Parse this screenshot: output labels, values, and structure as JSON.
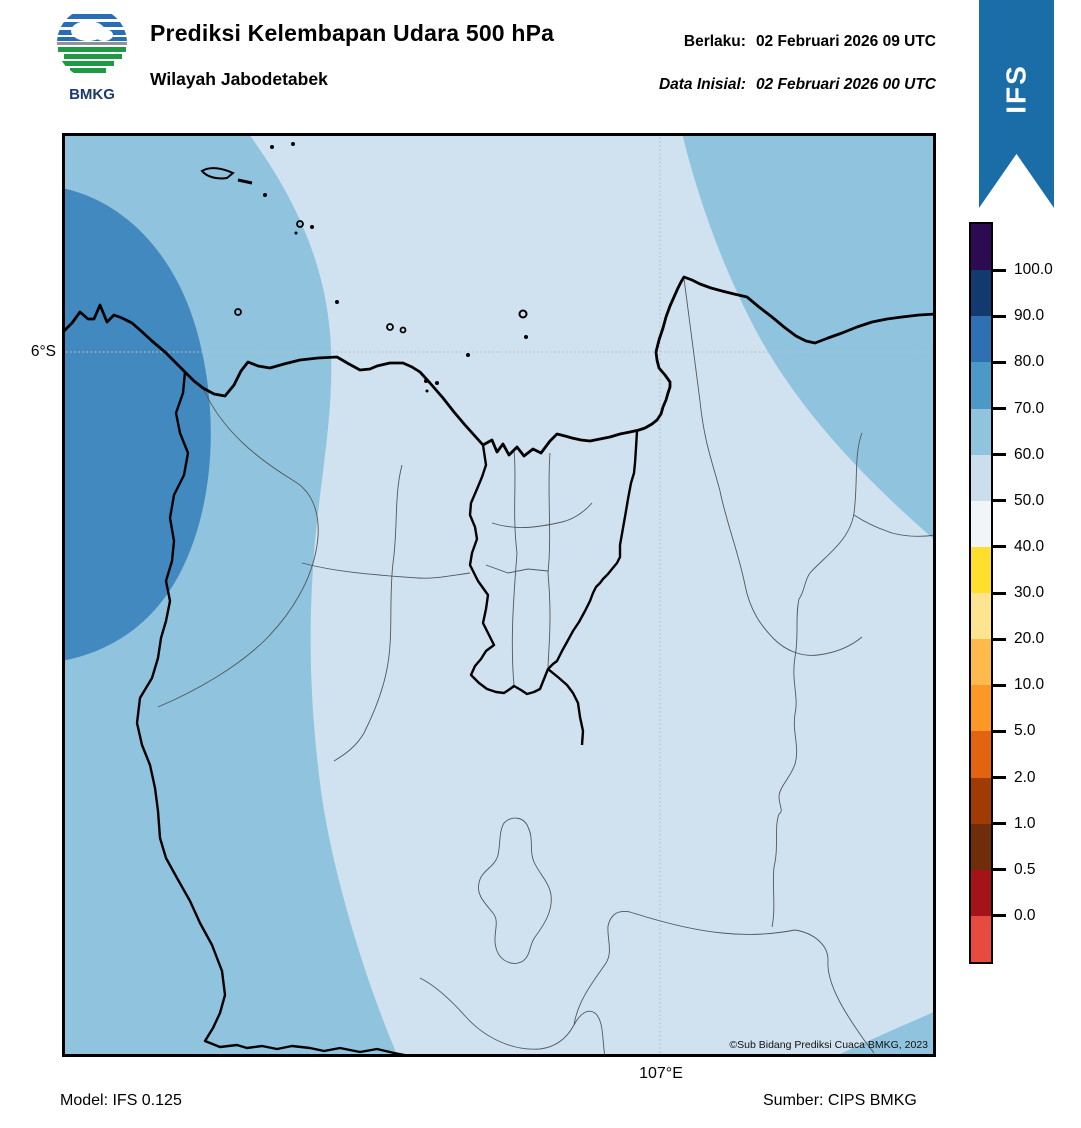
{
  "header": {
    "logo_text": "BMKG",
    "title": "Prediksi Kelembapan Udara 500 hPa",
    "subtitle": "Wilayah Jabodetabek",
    "valid_label": "Berlaku:",
    "valid_value": "02 Februari 2026 09 UTC",
    "init_label": "Data Inisial:",
    "init_value": "02 Februari 2026 00 UTC"
  },
  "ribbon": {
    "label": "IFS",
    "color": "#1a6da6"
  },
  "map": {
    "lat_tick": "6°S",
    "lon_tick": "107°E",
    "copyright": "©Sub Bidang Prediksi Cuaca BMKG, 2023",
    "fills": {
      "rh_50_60": "#d0e2ef",
      "rh_60_70": "#90c3de",
      "rh_70_80": "#4289bf"
    }
  },
  "colorbar": {
    "tick_labels": [
      "100.0",
      "90.0",
      "80.0",
      "70.0",
      "60.0",
      "50.0",
      "40.0",
      "30.0",
      "20.0",
      "10.0",
      "5.0",
      "2.0",
      "1.0",
      "0.5",
      "0.0"
    ],
    "segment_colors": [
      "#2d0b52",
      "#123a6e",
      "#2e70b2",
      "#4d99c6",
      "#90c3de",
      "#cbdeed",
      "#f2f5f8",
      "#ffdf2b",
      "#fee391",
      "#feba4d",
      "#fd9827",
      "#e26310",
      "#a03b04",
      "#6f2d0a",
      "#a31318",
      "#e84a3f"
    ]
  },
  "footer": {
    "model": "Model: IFS 0.125",
    "source": "Sumber: CIPS BMKG"
  }
}
